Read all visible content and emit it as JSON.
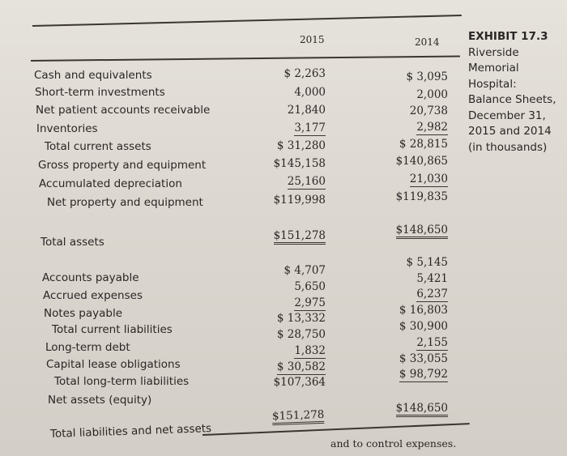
{
  "header": {
    "year1": "2015",
    "year2": "2014"
  },
  "exhibit": {
    "number": "EXHIBIT 17.3",
    "lines": [
      "Riverside",
      "Memorial",
      "Hospital:",
      "Balance Sheets,",
      "December 31,",
      "2015 and 2014",
      "(in thousands)"
    ]
  },
  "rows": [
    {
      "label": "Cash and equivalents",
      "v2015": "$  2,263",
      "v2014": "$  3,095"
    },
    {
      "label": "Short-term investments",
      "v2015": "4,000",
      "v2014": "2,000"
    },
    {
      "label": "Net patient accounts receivable",
      "v2015": "21,840",
      "v2014": "20,738"
    },
    {
      "label": "Inventories",
      "v2015": "3,177",
      "v2014": "2,982"
    },
    {
      "label": "Total current assets",
      "v2015": "$ 31,280",
      "v2014": "$ 28,815"
    },
    {
      "label": "Gross property and equipment",
      "v2015": "$145,158",
      "v2014": "$140,865"
    },
    {
      "label": "Accumulated depreciation",
      "v2015": "25,160",
      "v2014": "21,030"
    },
    {
      "label": "Net property and equipment",
      "v2015": "$119,998",
      "v2014": "$119,835"
    },
    {
      "label": "Total assets",
      "v2015": "$151,278",
      "v2014": "$148,650"
    },
    {
      "label": "Accounts payable",
      "v2015": "$  4,707",
      "v2014": "$  5,145"
    },
    {
      "label": "Accrued expenses",
      "v2015": "5,650",
      "v2014": "5,421"
    },
    {
      "label": "Notes payable",
      "v2015": "2,975",
      "v2014": "6,237"
    },
    {
      "label": "Total current liabilities",
      "v2015": "$ 13,332",
      "v2014": "$ 16,803"
    },
    {
      "label": "Long-term debt",
      "v2015": "$ 28,750",
      "v2014": "$ 30,900"
    },
    {
      "label": "Capital lease obligations",
      "v2015": "1,832",
      "v2014": "2,155"
    },
    {
      "label": "Total long-term liabilities",
      "v2015": "$ 30,582",
      "v2014": "$ 33,055"
    },
    {
      "label": "Net assets (equity)",
      "v2015": "$107,364",
      "v2014": "$ 98,792"
    },
    {
      "label": "Total liabilities and net assets",
      "v2015": "$151,278",
      "v2014": "$148,650"
    }
  ],
  "footer": "and to control expenses."
}
